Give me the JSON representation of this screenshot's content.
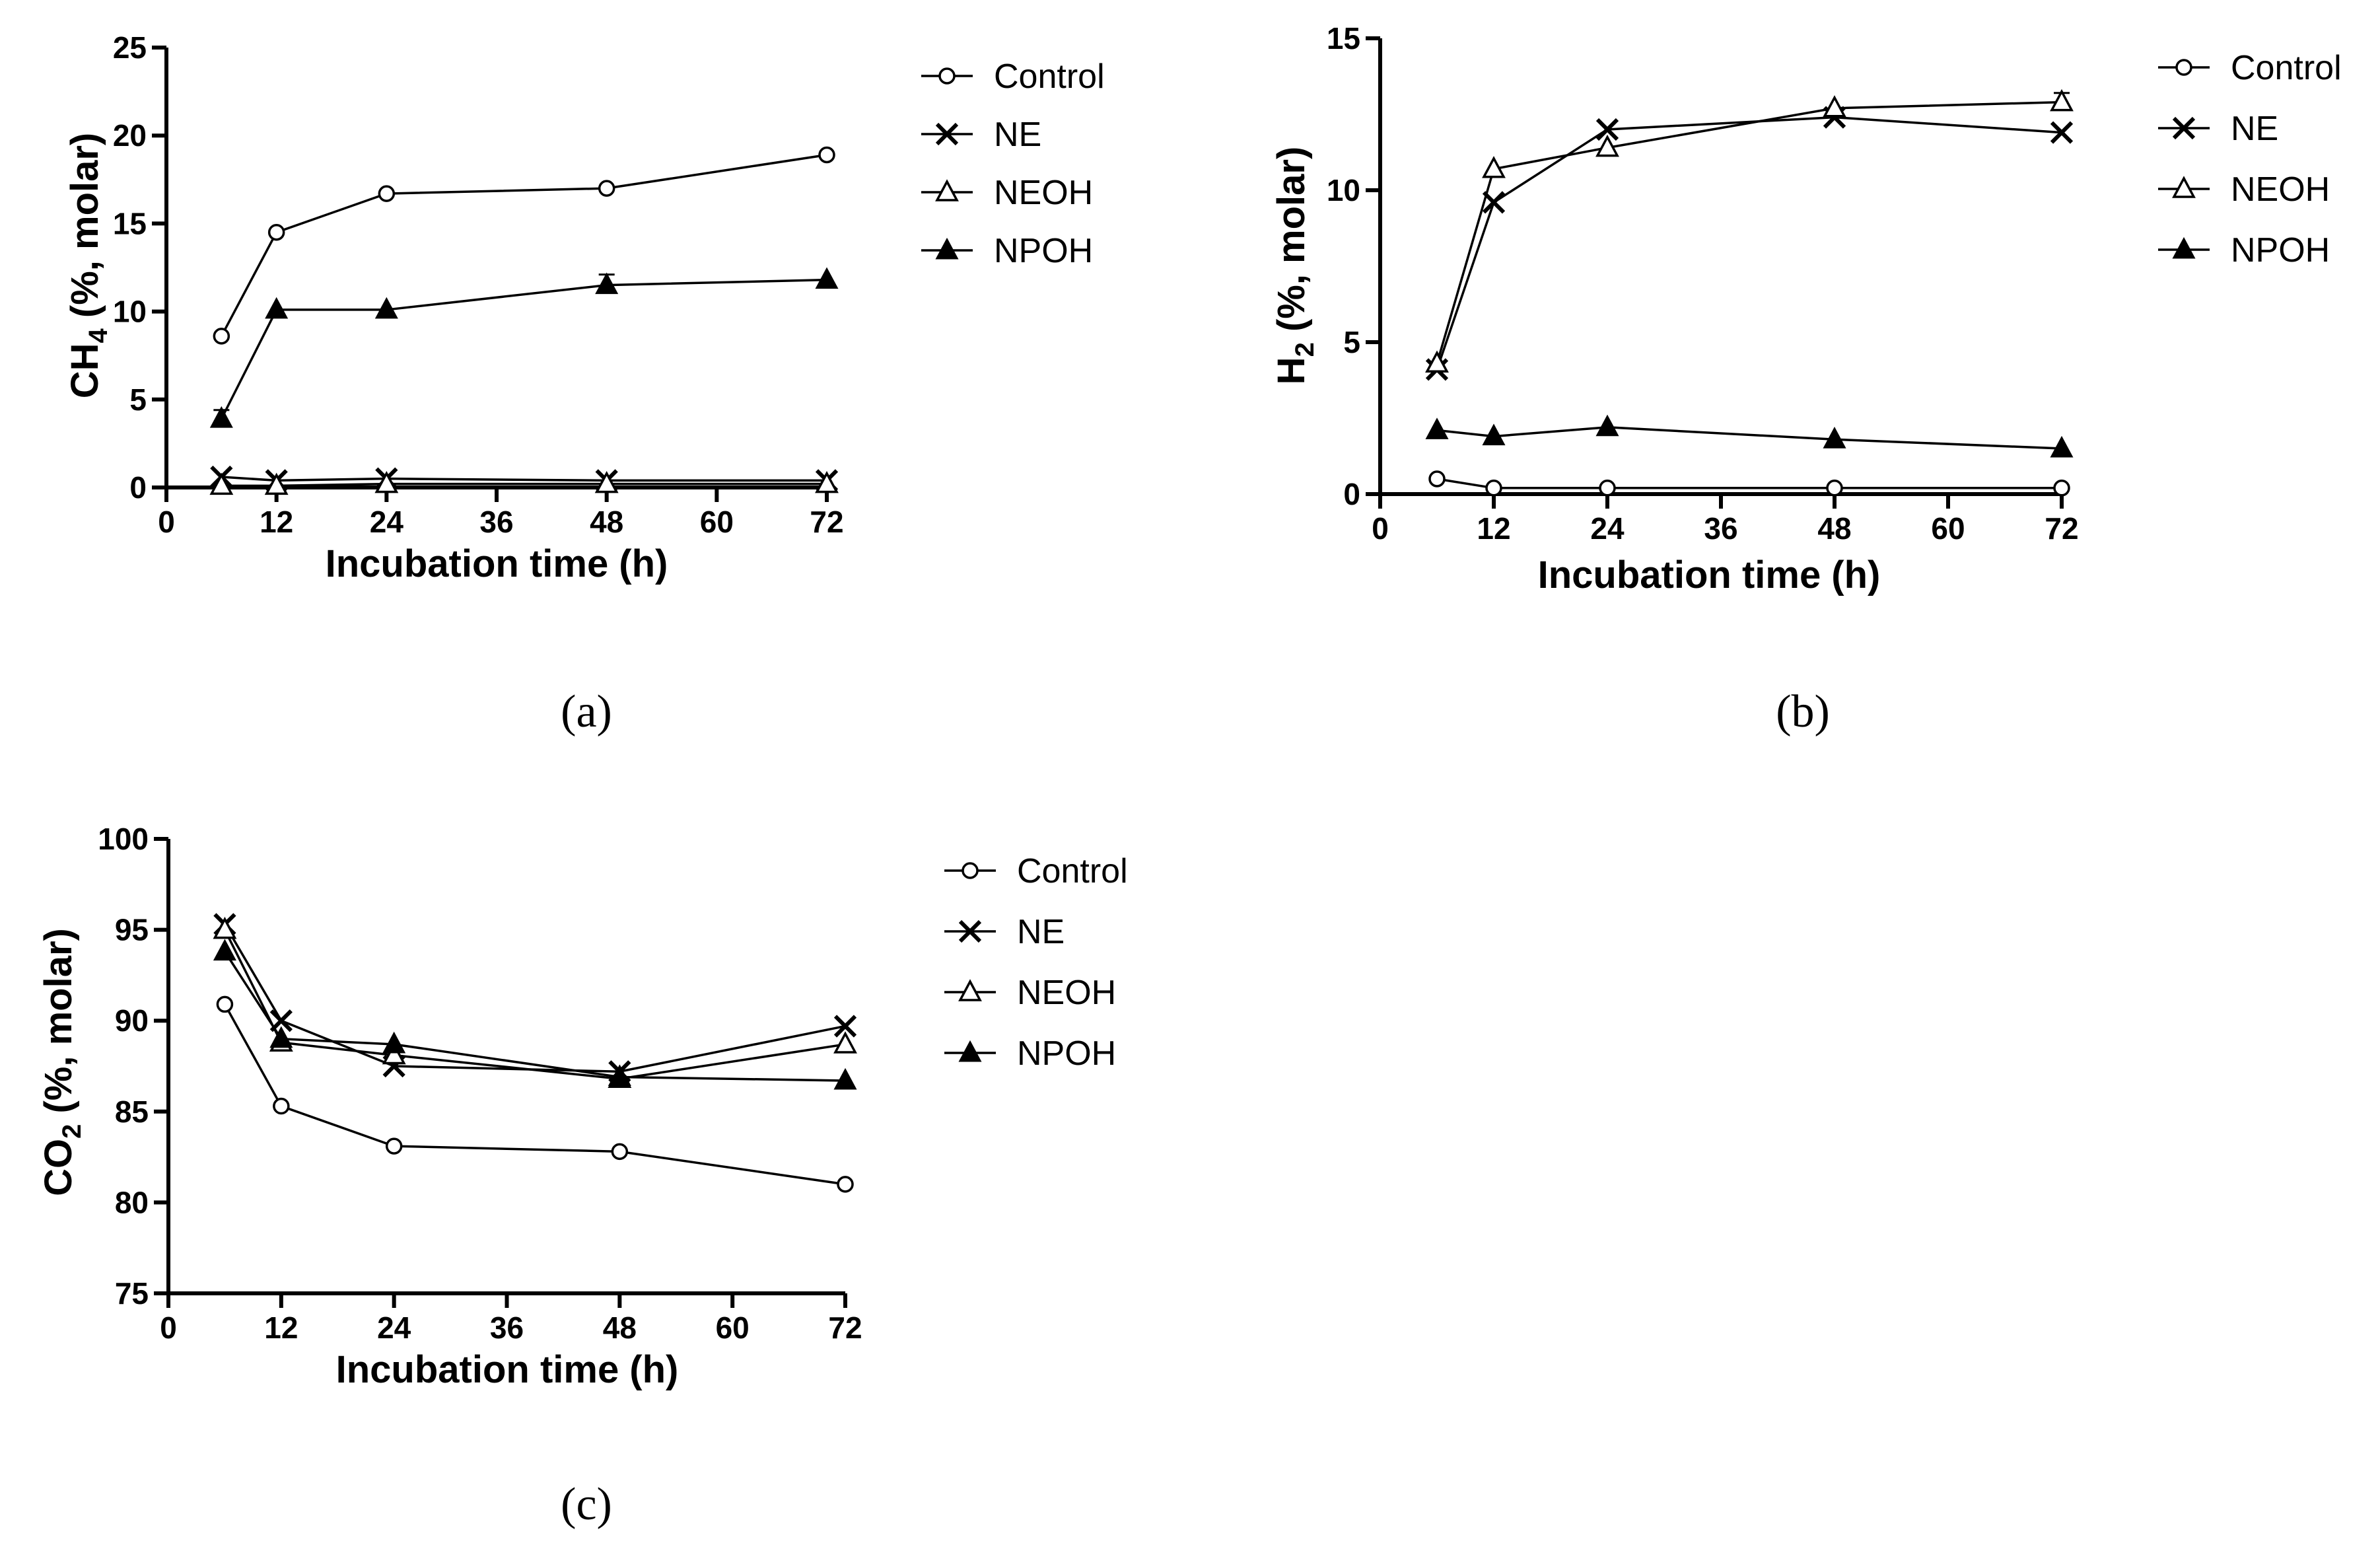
{
  "panel_labels": [
    "(a)",
    "(b)",
    "(c)"
  ],
  "chart_data": [
    {
      "type": "line",
      "panel": "(a)",
      "xlabel": "Incubation time (h)",
      "ylabel_main": "CH",
      "ylabel_sub": "4",
      "ylabel_rest": " (%, molar)",
      "xlim": [
        0,
        72
      ],
      "ylim": [
        0,
        25
      ],
      "xticks": [
        0,
        12,
        24,
        36,
        48,
        60,
        72
      ],
      "yticks": [
        0,
        5,
        10,
        15,
        20,
        25
      ],
      "legend": [
        "Control",
        "NE",
        "NEOH",
        "NPOH"
      ],
      "x": [
        6,
        12,
        24,
        48,
        72
      ],
      "series": [
        {
          "name": "Control",
          "marker": "circle-open",
          "values": [
            8.6,
            14.5,
            16.7,
            17.0,
            18.9
          ]
        },
        {
          "name": "NE",
          "marker": "x",
          "values": [
            0.6,
            0.4,
            0.5,
            0.4,
            0.4
          ]
        },
        {
          "name": "NEOH",
          "marker": "triangle-open",
          "values": [
            0.1,
            0.1,
            0.2,
            0.2,
            0.2
          ]
        },
        {
          "name": "NPOH",
          "marker": "triangle-filled",
          "values": [
            3.9,
            10.1,
            10.1,
            11.5,
            11.8
          ],
          "errors": [
            0.5,
            0,
            0,
            0.6,
            0
          ]
        }
      ]
    },
    {
      "type": "line",
      "panel": "(b)",
      "xlabel": "Incubation time (h)",
      "ylabel_main": "H",
      "ylabel_sub": "2",
      "ylabel_rest": " (%, molar)",
      "xlim": [
        0,
        72
      ],
      "ylim": [
        0,
        15
      ],
      "xticks": [
        0,
        12,
        24,
        36,
        48,
        60,
        72
      ],
      "yticks": [
        0,
        5,
        10,
        15
      ],
      "legend": [
        "Control",
        "NE",
        "NEOH",
        "NPOH"
      ],
      "x": [
        6,
        12,
        24,
        48,
        72
      ],
      "series": [
        {
          "name": "Control",
          "marker": "circle-open",
          "values": [
            0.5,
            0.2,
            0.2,
            0.2,
            0.2
          ]
        },
        {
          "name": "NE",
          "marker": "x",
          "values": [
            4.1,
            9.6,
            12.0,
            12.4,
            11.9
          ]
        },
        {
          "name": "NEOH",
          "marker": "triangle-open",
          "values": [
            4.3,
            10.7,
            11.4,
            12.7,
            12.9
          ],
          "errors": [
            0,
            0,
            0,
            0,
            0.3
          ]
        },
        {
          "name": "NPOH",
          "marker": "triangle-filled",
          "values": [
            2.1,
            1.9,
            2.2,
            1.8,
            1.5
          ]
        }
      ]
    },
    {
      "type": "line",
      "panel": "(c)",
      "xlabel": "Incubation time (h)",
      "ylabel_main": "CO",
      "ylabel_sub": "2",
      "ylabel_rest": " (%, molar)",
      "xlim": [
        0,
        72
      ],
      "ylim": [
        75,
        100
      ],
      "xticks": [
        0,
        12,
        24,
        36,
        48,
        60,
        72
      ],
      "yticks": [
        75,
        80,
        85,
        90,
        95,
        100
      ],
      "legend": [
        "Control",
        "NE",
        "NEOH",
        "NPOH"
      ],
      "x": [
        6,
        12,
        24,
        48,
        72
      ],
      "series": [
        {
          "name": "Control",
          "marker": "circle-open",
          "values": [
            90.9,
            85.3,
            83.1,
            82.8,
            81.0
          ]
        },
        {
          "name": "NE",
          "marker": "x",
          "values": [
            95.3,
            90.0,
            87.5,
            87.2,
            89.7
          ]
        },
        {
          "name": "NEOH",
          "marker": "triangle-open",
          "values": [
            95.0,
            88.8,
            88.1,
            86.8,
            88.7
          ]
        },
        {
          "name": "NPOH",
          "marker": "triangle-filled",
          "values": [
            93.8,
            89.0,
            88.7,
            86.9,
            86.7
          ]
        }
      ]
    }
  ]
}
